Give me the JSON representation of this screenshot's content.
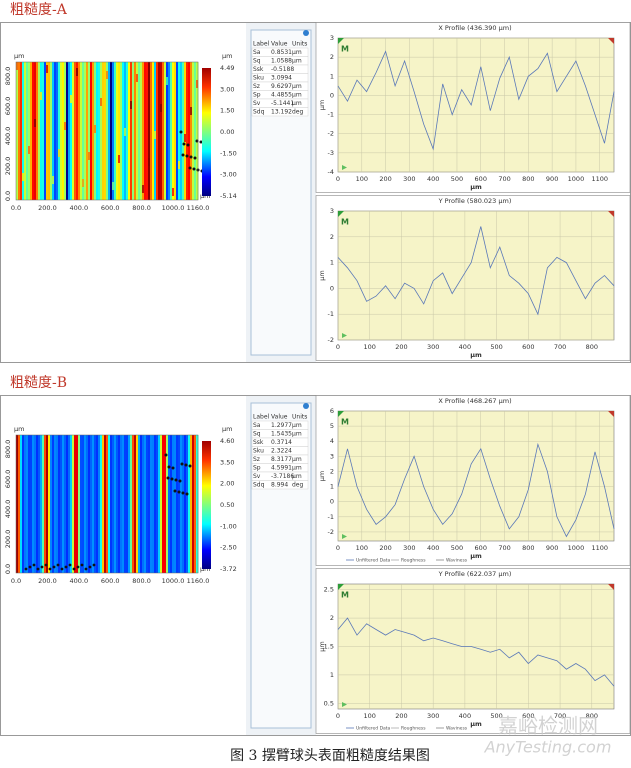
{
  "sections": [
    {
      "title": "粗糙度-A",
      "map": {
        "unit": "µm",
        "x_unit": "µm",
        "colorbar_unit": "µm",
        "xticks": [
          "0.0",
          "200.0",
          "400.0",
          "600.0",
          "800.0",
          "1000.0",
          "1160.0"
        ],
        "yticks": [
          "0.0",
          "200.0",
          "400.0",
          "600.0",
          "800.0"
        ],
        "colorbar": [
          "4.49",
          "3.00",
          "1.50",
          "0.00",
          "-1.50",
          "-3.00",
          "-5.14"
        ]
      },
      "table": {
        "header": [
          "Label",
          "Value",
          "Units"
        ],
        "rows": [
          [
            "Sa",
            "0.8531",
            "µm"
          ],
          [
            "Sq",
            "1.0588",
            "µm"
          ],
          [
            "Ssk",
            "-0.5188"
          ],
          [
            "Sku",
            "3.0994"
          ],
          [
            "Sz",
            "9.6297",
            "µm"
          ],
          [
            "Sp",
            "4.4855",
            "µm"
          ],
          [
            "Sv",
            "-5.1441",
            "µm"
          ],
          [
            "Sdq",
            "13.192",
            "deg"
          ]
        ]
      },
      "profiles": [
        {
          "title": "X Profile (436.390 µm)",
          "marker": "M",
          "xlabel": "µm",
          "ylabel": "µm",
          "xlim": [
            0,
            1160
          ],
          "ylim": [
            -4,
            3
          ],
          "xticks": [
            0,
            100,
            200,
            300,
            400,
            500,
            600,
            700,
            800,
            900,
            1000,
            1100
          ],
          "yticks": [
            -4,
            -3,
            -2,
            -1,
            0,
            1,
            2,
            3
          ],
          "x": [
            0,
            40,
            80,
            120,
            160,
            200,
            240,
            280,
            320,
            360,
            400,
            440,
            480,
            520,
            560,
            600,
            640,
            680,
            720,
            760,
            800,
            840,
            880,
            920,
            960,
            1000,
            1040,
            1080,
            1120,
            1160
          ],
          "y": [
            0.5,
            -0.3,
            0.8,
            0.2,
            1.2,
            2.3,
            0.5,
            1.8,
            0.2,
            -1.5,
            -2.8,
            0.6,
            -1.0,
            0.3,
            -0.5,
            1.5,
            -0.8,
            0.9,
            2.0,
            -0.2,
            1.0,
            1.4,
            2.2,
            0.2,
            1.0,
            1.8,
            0.5,
            -1.0,
            -2.5,
            0.2
          ]
        },
        {
          "title": "Y Profile (580.023 µm)",
          "marker": "M",
          "xlabel": "µm",
          "ylabel": "µm",
          "xlim": [
            0,
            870
          ],
          "ylim": [
            -2,
            3
          ],
          "xticks": [
            0,
            100,
            200,
            300,
            400,
            500,
            600,
            700,
            800
          ],
          "yticks": [
            -2,
            -1,
            0,
            1,
            2,
            3
          ],
          "x": [
            0,
            30,
            60,
            90,
            120,
            150,
            180,
            210,
            240,
            270,
            300,
            330,
            360,
            390,
            420,
            450,
            480,
            510,
            540,
            570,
            600,
            630,
            660,
            690,
            720,
            750,
            780,
            810,
            840,
            870
          ],
          "y": [
            1.2,
            0.8,
            0.3,
            -0.5,
            -0.3,
            0.1,
            -0.4,
            0.2,
            0.0,
            -0.6,
            0.3,
            0.6,
            -0.2,
            0.4,
            1.0,
            2.4,
            0.8,
            1.6,
            0.5,
            0.2,
            -0.2,
            -1.0,
            0.8,
            1.2,
            1.0,
            0.3,
            -0.4,
            0.2,
            0.5,
            0.1
          ]
        }
      ]
    },
    {
      "title": "粗糙度-B",
      "map": {
        "unit": "µm",
        "x_unit": "µm",
        "colorbar_unit": "µm",
        "xticks": [
          "0.0",
          "200.0",
          "400.0",
          "600.0",
          "800.0",
          "1000.0",
          "1160.0"
        ],
        "yticks": [
          "0.0",
          "200.0",
          "400.0",
          "600.0",
          "800.0"
        ],
        "colorbar": [
          "4.60",
          "3.50",
          "2.00",
          "0.50",
          "-1.00",
          "-2.50",
          "-3.72"
        ]
      },
      "table": {
        "header": [
          "Label",
          "Value",
          "Units"
        ],
        "rows": [
          [
            "Sa",
            "1.2977",
            "µm"
          ],
          [
            "Sq",
            "1.5435",
            "µm"
          ],
          [
            "Ssk",
            "0.3714"
          ],
          [
            "Sku",
            "2.3224"
          ],
          [
            "Sz",
            "8.3177",
            "µm"
          ],
          [
            "Sp",
            "4.5991",
            "µm"
          ],
          [
            "Sv",
            "-3.7186",
            "µm"
          ],
          [
            "Sdq",
            "8.994",
            "deg"
          ]
        ]
      },
      "profiles": [
        {
          "title": "X Profile (468.267 µm)",
          "marker": "M",
          "xlabel": "µm",
          "ylabel": "µm",
          "legend": [
            "Unfiltered Data",
            "Roughness",
            "Waviness"
          ],
          "xlim": [
            0,
            1160
          ],
          "ylim": [
            -2.6,
            6
          ],
          "xticks": [
            0,
            100,
            200,
            300,
            400,
            500,
            600,
            700,
            800,
            900,
            1000,
            1100
          ],
          "yticks": [
            -2,
            -1,
            0,
            1,
            2,
            3,
            4,
            5,
            6
          ],
          "x": [
            0,
            40,
            80,
            120,
            160,
            200,
            240,
            280,
            320,
            360,
            400,
            440,
            480,
            520,
            560,
            600,
            640,
            680,
            720,
            760,
            800,
            840,
            880,
            920,
            960,
            1000,
            1040,
            1080,
            1120,
            1160
          ],
          "y": [
            1.0,
            3.5,
            1.0,
            -0.5,
            -1.5,
            -1.0,
            -0.2,
            1.5,
            3.0,
            1.0,
            -0.5,
            -1.5,
            -0.8,
            0.5,
            2.5,
            3.5,
            1.5,
            -0.3,
            -1.8,
            -1.0,
            0.8,
            3.8,
            2.0,
            -1.0,
            -2.3,
            -1.2,
            0.5,
            3.3,
            1.0,
            -1.8
          ]
        },
        {
          "title": "Y Profile (622.037 µm)",
          "marker": "M",
          "xlabel": "µm",
          "ylabel": "µm",
          "legend": [
            "Unfiltered Data",
            "Roughness",
            "Waviness"
          ],
          "xlim": [
            0,
            870
          ],
          "ylim": [
            0.4,
            2.6
          ],
          "xticks": [
            0,
            100,
            200,
            300,
            400,
            500,
            600,
            700,
            800
          ],
          "yticks": [
            0.5,
            1,
            1.5,
            2,
            2.5
          ],
          "x": [
            0,
            30,
            60,
            90,
            120,
            150,
            180,
            210,
            240,
            270,
            300,
            330,
            360,
            390,
            420,
            450,
            480,
            510,
            540,
            570,
            600,
            630,
            660,
            690,
            720,
            750,
            780,
            810,
            840,
            870
          ],
          "y": [
            1.8,
            2.0,
            1.7,
            1.9,
            1.8,
            1.7,
            1.8,
            1.75,
            1.7,
            1.6,
            1.65,
            1.6,
            1.55,
            1.5,
            1.5,
            1.45,
            1.4,
            1.45,
            1.3,
            1.4,
            1.2,
            1.35,
            1.3,
            1.25,
            1.1,
            1.2,
            1.1,
            0.9,
            1.0,
            0.8
          ]
        }
      ]
    }
  ],
  "caption": "图 3   摆臂球头表面粗糙度结果图",
  "watermark": [
    "嘉峪检测网",
    "AnyTesting.com"
  ]
}
